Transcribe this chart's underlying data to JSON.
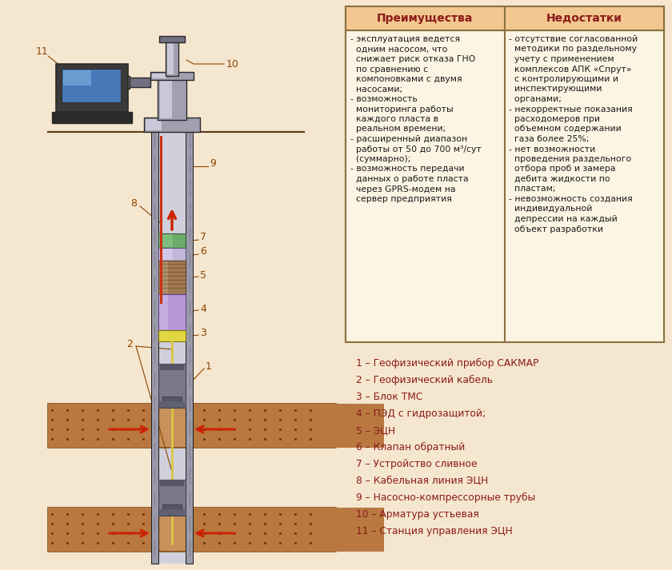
{
  "bg_color": "#f5e6cf",
  "table_header_bg": "#f2c890",
  "table_header_text": "#8b1a1a",
  "table_cell_bg": "#fdf5e4",
  "table_border": "#8b7040",
  "label_color": "#8b4500",
  "legend_color": "#8b1a1a",
  "title_advantages": "Преимущества",
  "title_disadvantages": "Недостатки",
  "advantages_text": "- эксплуатация ведется\n  одним насосом, что\n  снижает риск отказа ГНО\n  по сравнению с\n  компоновками с двумя\n  насосами;\n- возможность\n  мониторинга работы\n  каждого пласта в\n  реальном времени;\n- расширенный диапазон\n  работы от 50 до 700 м³/сут\n  (суммарно);\n- возможность передачи\n  данных о работе пласта\n  через GPRS-модем на\n  сервер предприятия",
  "disadvantages_text": "- отсутствие согласованной\n  методики по раздельному\n  учету с применением\n  комплексов АПК «Спрут»\n  с контролирующими и\n  инспектирующими\n  органами;\n- некорректные показания\n  расходомеров при\n  объемном содержании\n  газа более 25%;\n- нет возможности\n  проведения раздельного\n  отбора проб и замера\n  дебита жидкости по\n  пластам;\n- невозможность создания\n  индивидуальной\n  депрессии на каждый\n  объект разработки",
  "legend_items": [
    "1 – Геофизический прибор САКМАР",
    "2 – Геофизический кабель",
    "3 – Блок ТМС",
    "4 – ПЭД с гидрозащитой;",
    "5 – ЭЦН",
    "6 – Клапан обратный",
    "7 – Устройство сливное",
    "8 – Кабельная линия ЭЦН",
    "9 – Насосно-компрессорные трубы",
    "10 – Арматура устьевая",
    "11 – Станция управления ЭЦН"
  ]
}
